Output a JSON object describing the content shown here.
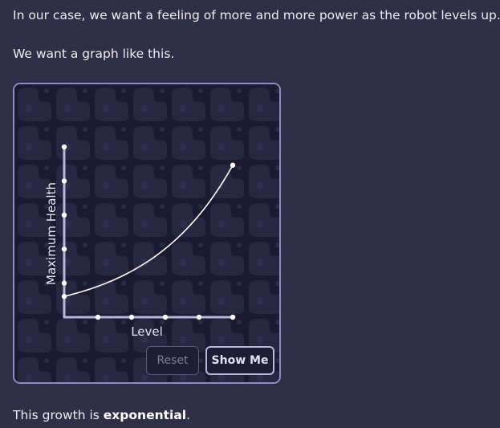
{
  "text": {
    "intro": "In our case, we want a feeling of more and more power as the robot levels up.",
    "graph_lead": "We want a graph like this.",
    "growth_prefix": "This growth is ",
    "growth_term": "exponential",
    "growth_suffix": "."
  },
  "widget": {
    "buttons": {
      "reset_label": "Reset",
      "show_me_label": "Show Me"
    }
  },
  "chart_data": {
    "type": "line",
    "xlabel": "Level",
    "ylabel": "Maximum Health",
    "x_tick_count": 5,
    "y_tick_count": 4,
    "curve": "exponential",
    "x": [
      0,
      1,
      2,
      3,
      4,
      5
    ],
    "y": [
      1.0,
      1.49,
      2.22,
      3.3,
      4.92,
      7.32
    ],
    "xlim": [
      0,
      5
    ],
    "ylim": [
      0,
      8.2
    ],
    "grid": false,
    "legend": "none",
    "colors": {
      "axis": "#b8b6de",
      "curve": "#ffffff",
      "tick": "#ffffff"
    }
  }
}
